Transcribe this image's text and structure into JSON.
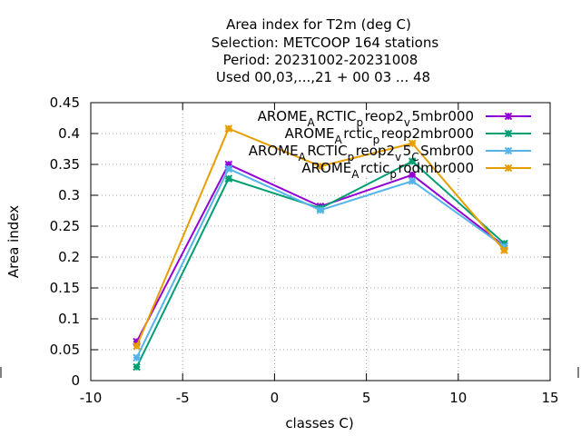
{
  "chart_data": {
    "type": "line",
    "title_lines": [
      "Area index  for T2m (deg C)",
      "Selection: METCOOP    164 stations",
      "Period: 20231002-20231008",
      "Used  00,03,...,21  + 00 03 ... 48"
    ],
    "xlabel": "classes C)",
    "ylabel": "Area index",
    "xlim": [
      -10,
      15
    ],
    "ylim": [
      0,
      0.45
    ],
    "x_ticks": [
      -10,
      -5,
      0,
      5,
      10,
      15
    ],
    "x_tick_labels": [
      "-10",
      "-5",
      "0",
      "5",
      "10",
      "15"
    ],
    "y_ticks": [
      0,
      0.05,
      0.1,
      0.15,
      0.2,
      0.25,
      0.3,
      0.35,
      0.4,
      0.45
    ],
    "y_tick_labels": [
      "0",
      "0.05",
      "0.1",
      "0.15",
      "0.2",
      "0.25",
      "0.3",
      "0.35",
      "0.4",
      "0.45"
    ],
    "grid": true,
    "legend_position": "top-right",
    "x": [
      -7.5,
      -2.5,
      2.5,
      7.5,
      12.5
    ],
    "series": [
      {
        "name": "AROME_ARCTIC_preop2_v5mbr000",
        "legend_main": [
          "AROME",
          "RCTIC",
          "reop2",
          "5mbr000"
        ],
        "legend_sub": [
          "A",
          "p",
          "v"
        ],
        "color": "#9400d3",
        "values": [
          0.063,
          0.35,
          0.282,
          0.333,
          0.218
        ]
      },
      {
        "name": "AROME_Arctic_preop2mbr000",
        "legend_main": [
          "AROME",
          "rctic",
          "reop2mbr000"
        ],
        "legend_sub": [
          "A",
          "p"
        ],
        "color": "#009e73",
        "values": [
          0.022,
          0.327,
          0.279,
          0.355,
          0.222
        ]
      },
      {
        "name": "AROME_ARCTIC_preop2_v5_CSmbr00",
        "legend_main": [
          "AROME",
          "RCTIC",
          "reop2",
          "5",
          "Smbr00"
        ],
        "legend_sub": [
          "A",
          "p",
          "v",
          "C"
        ],
        "color": "#56b4e9",
        "values": [
          0.037,
          0.343,
          0.276,
          0.323,
          0.217
        ]
      },
      {
        "name": "AROME_Arctic_prodmbr000",
        "legend_main": [
          "AROME",
          "rctic",
          "rodmbr000"
        ],
        "legend_sub": [
          "A",
          "p"
        ],
        "color": "#e69f00",
        "values": [
          0.056,
          0.408,
          0.347,
          0.384,
          0.211
        ]
      }
    ]
  }
}
